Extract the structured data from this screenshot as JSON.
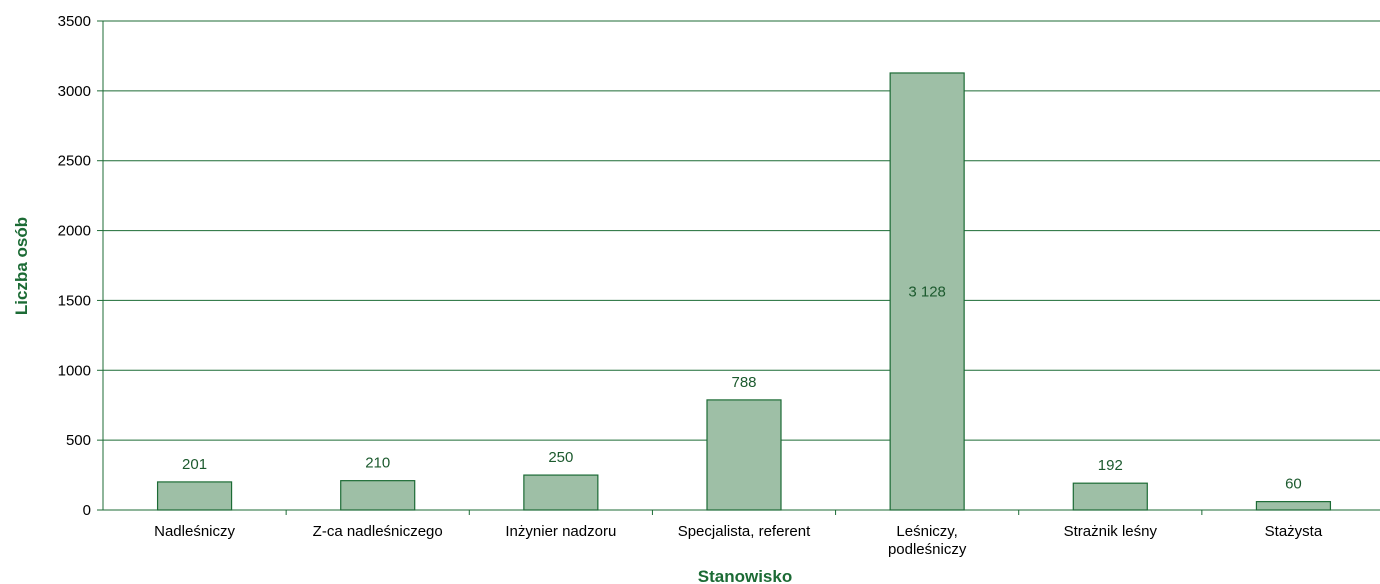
{
  "chart_data": {
    "type": "bar",
    "xlabel": "Stanowisko",
    "ylabel": "Liczba osób",
    "ylim": [
      0,
      3500
    ],
    "yticks": [
      0,
      500,
      1000,
      1500,
      2000,
      2500,
      3000,
      3500
    ],
    "grid": true,
    "categories": [
      [
        "Nadleśniczy"
      ],
      [
        "Z-ca nadleśniczego"
      ],
      [
        "Inżynier nadzoru"
      ],
      [
        "Specjalista, referent"
      ],
      [
        "Leśniczy,",
        "podleśniczy"
      ],
      [
        "Strażnik leśny"
      ],
      [
        "Stażysta"
      ]
    ],
    "values": [
      201,
      210,
      250,
      788,
      3128,
      192,
      60
    ],
    "data_labels": [
      "201",
      "210",
      "250",
      "788",
      "3 128",
      "192",
      "60"
    ],
    "colors": {
      "bar_fill": "#9ebfa6",
      "bar_stroke": "#1c6b35",
      "axis": "#1c6b35",
      "grid": "#1c6b35",
      "label_text": "#1c5a2e",
      "axis_title": "#1c6b35"
    }
  }
}
